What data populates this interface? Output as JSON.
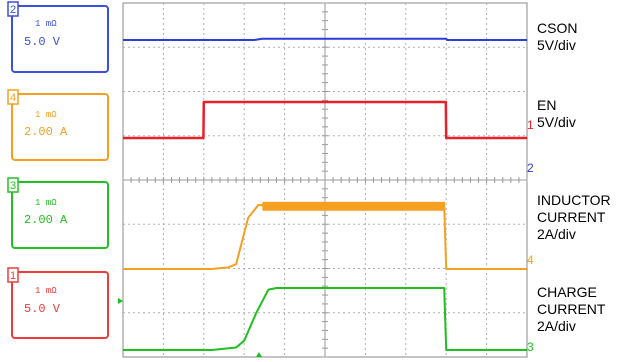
{
  "chart_data": {
    "type": "line",
    "grid": true,
    "time_axis": {
      "divisions": 10,
      "unit": "div"
    },
    "channels": [
      {
        "id": "2",
        "box_lines": [
          "1 mΩ",
          "5.0 V"
        ],
        "color": "#2b3fd6",
        "label_lines": [
          "CSON",
          "5V/div"
        ],
        "x": [
          0,
          3.25,
          3.45,
          8.0,
          8.02,
          10
        ],
        "y": [
          0,
          0,
          0.15,
          0.15,
          0,
          0
        ]
      },
      {
        "id": "4",
        "box_lines": [
          "1 mΩ",
          "2.00 A"
        ],
        "color": "#e8202a",
        "label_lines": [
          "EN",
          "5V/div"
        ],
        "x": [
          0,
          1.99,
          2.0,
          7.99,
          8.0,
          10
        ],
        "y": [
          0,
          0,
          1.0,
          1.0,
          0,
          0
        ]
      },
      {
        "id": "3",
        "box_lines": [
          "1 mΩ",
          "2.00 A"
        ],
        "color": "#f5a020",
        "label_lines": [
          "INDUCTOR",
          "CURRENT",
          "2A/div"
        ],
        "x": [
          0,
          2.2,
          2.6,
          2.8,
          3.1,
          3.35,
          3.6,
          7.95,
          8.0,
          10
        ],
        "y": [
          0,
          0,
          0.05,
          0.15,
          1.6,
          2.0,
          1.98,
          1.98,
          0,
          0
        ]
      },
      {
        "id": "1",
        "box_lines": [
          "1 mΩ",
          "5.0 V"
        ],
        "color": "#1fbf1f",
        "label_lines": [
          "CHARGE",
          "CURRENT",
          "2A/div"
        ],
        "x": [
          0,
          2.2,
          2.8,
          3.0,
          3.3,
          3.6,
          3.8,
          7.95,
          8.0,
          10
        ],
        "y": [
          0,
          0,
          0.08,
          0.3,
          1.2,
          1.95,
          2.0,
          2.0,
          0,
          0
        ]
      }
    ]
  },
  "labels": {
    "cson": [
      "CSON",
      "5V/div"
    ],
    "en": [
      "EN",
      "5V/div"
    ],
    "inductor": [
      "INDUCTOR",
      "CURRENT",
      "2A/div"
    ],
    "charge": [
      "CHARGE",
      "CURRENT",
      "2A/div"
    ]
  },
  "boxes": [
    {
      "num": "2",
      "line1": "1 mΩ",
      "line2": "5.0 V",
      "color": "#3b4fe0"
    },
    {
      "num": "4",
      "line1": "1 mΩ",
      "line2": "2.00 A",
      "color": "#f5a020"
    },
    {
      "num": "3",
      "line1": "1 mΩ",
      "line2": "2.00 A",
      "color": "#22c022"
    },
    {
      "num": "1",
      "line1": "1 mΩ",
      "line2": "5.0 V",
      "color": "#ee3b3b"
    }
  ],
  "markers": {
    "en_ref": "1",
    "cson_ref": "2",
    "inductor_ref": "4",
    "charge_ref": "3"
  }
}
